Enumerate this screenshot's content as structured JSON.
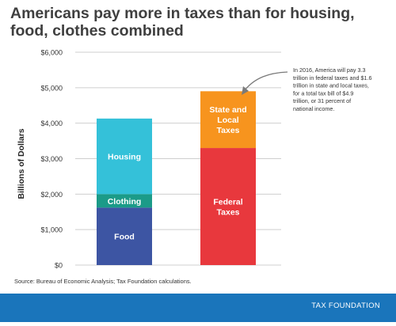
{
  "title": "Americans pay more in taxes than for housing, food, clothes combined",
  "source": "Source:  Bureau of Economic Analysis; Tax Foundation calculations.",
  "brand": "TAX FOUNDATION",
  "colors": {
    "food": "#3d55a3",
    "clothing": "#1b9b88",
    "housing": "#34c1d9",
    "federal": "#e8383d",
    "state_local": "#f7941e",
    "footer": "#1a75bb",
    "grid": "#cfcfcf"
  },
  "chart_data": {
    "type": "bar",
    "stacked": true,
    "title": "Americans pay more in taxes than for housing, food, clothes combined",
    "xlabel": "",
    "ylabel": "Billions of Dollars",
    "ylim": [
      0,
      6000
    ],
    "yticks": [
      "$0",
      "$1,000",
      "$2,000",
      "$3,000",
      "$4,000",
      "$5,000",
      "$6,000"
    ],
    "grid": true,
    "bars": [
      {
        "segments": [
          {
            "label": "Food",
            "value": 1620,
            "color": "#3d55a3"
          },
          {
            "label": "Clothing",
            "value": 380,
            "color": "#1b9b88"
          },
          {
            "label": "Housing",
            "value": 2130,
            "color": "#34c1d9"
          }
        ]
      },
      {
        "segments": [
          {
            "label": "Federal Taxes",
            "value": 3300,
            "color": "#e8383d"
          },
          {
            "label": "State and Local Taxes",
            "value": 1600,
            "color": "#f7941e"
          }
        ]
      }
    ],
    "annotation": "In 2016, America will pay 3.3 trillion in federal taxes and $1.6 trillion in state and local taxes, for a total tax bill of $4.9 trillion, or 31 percent of national income."
  }
}
